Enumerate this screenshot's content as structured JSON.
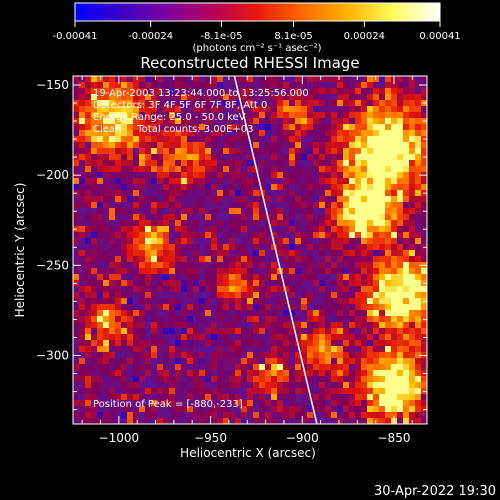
{
  "chart_data": {
    "type": "heatmap",
    "title": "Reconstructed RHESSI Image",
    "xlabel": "Heliocentric X (arcsec)",
    "ylabel": "Heliocentric Y (arcsec)",
    "xlim": [
      -1025,
      -832
    ],
    "ylim": [
      -338,
      -145
    ],
    "x_ticks": [
      -1000,
      -950,
      -900,
      -850
    ],
    "x_tick_labels": [
      "−1000",
      "−950",
      "−900",
      "−850"
    ],
    "y_ticks": [
      -150,
      -200,
      -250,
      -300
    ],
    "y_tick_labels": [
      "−150",
      "−200",
      "−250",
      "−300"
    ],
    "colorbar": {
      "ticks": [
        -0.00041,
        -0.00024,
        -8.1e-05,
        8.1e-05,
        0.00024,
        0.00041
      ],
      "tick_labels": [
        "-0.00041",
        "-0.00024",
        "-8.1e-05",
        "8.1e-05",
        "0.00024",
        "0.00041"
      ],
      "unit_label": "(photons cm⁻² s⁻¹ asec⁻²)",
      "colors": [
        "#0000ff",
        "#3a00c8",
        "#7a00a0",
        "#b4005a",
        "#e81a0a",
        "#ff6a00",
        "#ffb400",
        "#ffff60",
        "#ffffff"
      ]
    },
    "annotations": [
      "19-Apr-2003 13:23:44.000 to 13:25:56.000",
      "Detectors: 3F 4F 5F 6F 7F 8F, Att 0",
      "Energy Range: 25.0 - 50.0 keV",
      "Clean     Total counts: 3.00E+03"
    ],
    "peak_label": "Position of Peak = [-880,-233]",
    "peak": [
      -880,
      -233
    ],
    "limb_line": [
      [
        -937,
        -145
      ],
      [
        -892,
        -338
      ]
    ],
    "grid": false
  },
  "footer": {
    "date": "30-Apr-2022 19:30"
  }
}
